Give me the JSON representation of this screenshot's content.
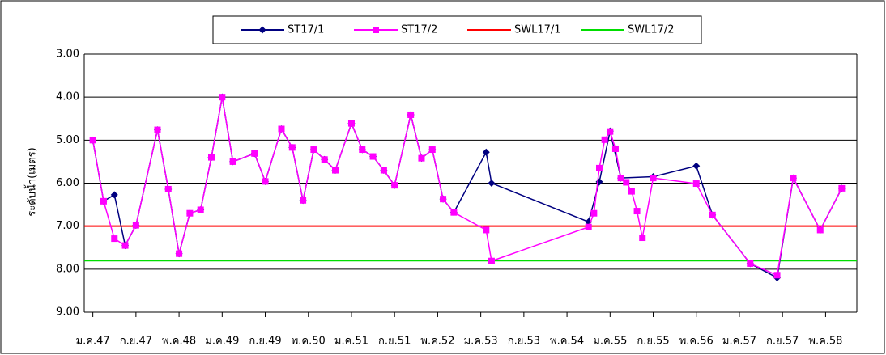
{
  "chart_data": {
    "type": "line",
    "ylabel": "ระดับน้ำ(เมตร)",
    "ylim": [
      3,
      9
    ],
    "y_inverted": true,
    "yticks": [
      {
        "value": 3,
        "label": "3.00"
      },
      {
        "value": 4,
        "label": "4.00"
      },
      {
        "value": 5,
        "label": "5.00"
      },
      {
        "value": 6,
        "label": "6.00"
      },
      {
        "value": 7,
        "label": "7.00"
      },
      {
        "value": 8,
        "label": "8.00"
      },
      {
        "value": 9,
        "label": "9.00"
      }
    ],
    "grid": true,
    "xlim": [
      -1.6,
      141.8
    ],
    "xticks": [
      {
        "value": 0,
        "label": "ม.ค.47"
      },
      {
        "value": 8,
        "label": "ก.ย.47"
      },
      {
        "value": 16,
        "label": "พ.ค.48"
      },
      {
        "value": 24,
        "label": "ม.ค.49"
      },
      {
        "value": 32,
        "label": "ก.ย.49"
      },
      {
        "value": 40,
        "label": "พ.ค.50"
      },
      {
        "value": 48,
        "label": "ม.ค.51"
      },
      {
        "value": 56,
        "label": "ก.ย.51"
      },
      {
        "value": 64,
        "label": "พ.ค.52"
      },
      {
        "value": 72,
        "label": "ม.ค.53"
      },
      {
        "value": 80,
        "label": "ก.ย.53"
      },
      {
        "value": 88,
        "label": "พ.ค.54"
      },
      {
        "value": 96,
        "label": "ม.ค.55"
      },
      {
        "value": 104,
        "label": "ก.ย.55"
      },
      {
        "value": 112,
        "label": "พ.ค.56"
      },
      {
        "value": 120,
        "label": "ม.ค.57"
      },
      {
        "value": 128,
        "label": "ก.ย.57"
      },
      {
        "value": 136,
        "label": "พ.ค.58"
      }
    ],
    "legend": "top",
    "series": [
      {
        "name": "ST17/1",
        "color": "#000080",
        "marker": "diamond",
        "x": [
          0,
          2,
          4,
          6,
          8,
          12,
          14,
          16,
          18,
          20,
          22,
          24,
          26,
          30,
          32,
          35,
          37,
          39,
          41,
          43,
          45,
          48,
          50,
          52,
          54,
          56,
          59,
          61,
          63,
          65,
          67,
          73,
          74,
          92,
          94,
          96,
          98,
          104,
          112,
          115,
          122,
          127,
          130,
          135,
          139
        ],
        "values": [
          5.0,
          6.42,
          6.27,
          7.45,
          6.98,
          4.76,
          6.14,
          7.64,
          6.7,
          6.62,
          5.4,
          4.0,
          5.5,
          5.31,
          5.96,
          4.74,
          5.17,
          6.4,
          5.22,
          5.45,
          5.7,
          4.61,
          5.22,
          5.38,
          5.7,
          6.05,
          4.41,
          5.42,
          5.22,
          6.37,
          6.68,
          5.28,
          6.0,
          6.9,
          5.97,
          4.79,
          5.88,
          5.85,
          5.6,
          6.74,
          7.87,
          8.2,
          5.88,
          7.09,
          6.12
        ]
      },
      {
        "name": "ST17/2",
        "color": "#ff00ff",
        "marker": "square",
        "x": [
          0,
          2,
          4,
          6,
          8,
          12,
          14,
          16,
          18,
          20,
          22,
          24,
          26,
          30,
          32,
          35,
          37,
          39,
          41,
          43,
          45,
          48,
          50,
          52,
          54,
          56,
          59,
          61,
          63,
          65,
          67,
          73,
          74,
          92,
          93,
          94,
          95,
          96,
          97,
          98,
          99,
          100,
          101,
          102,
          104,
          112,
          115,
          122,
          127,
          130,
          135,
          139
        ],
        "values": [
          5.0,
          6.42,
          7.29,
          7.45,
          6.98,
          4.76,
          6.14,
          7.64,
          6.7,
          6.62,
          5.4,
          4.0,
          5.5,
          5.31,
          5.96,
          4.74,
          5.17,
          6.4,
          5.22,
          5.45,
          5.7,
          4.61,
          5.22,
          5.38,
          5.7,
          6.05,
          4.41,
          5.42,
          5.22,
          6.37,
          6.68,
          7.09,
          7.81,
          7.02,
          6.7,
          5.65,
          4.99,
          4.8,
          5.2,
          5.88,
          5.98,
          6.19,
          6.65,
          7.27,
          5.88,
          6.01,
          6.74,
          7.87,
          8.14,
          5.88,
          7.09,
          6.12
        ]
      }
    ],
    "hlines": [
      {
        "name": "SWL17/1",
        "color": "#ff0000",
        "value": 7.0
      },
      {
        "name": "SWL17/2",
        "color": "#00dd00",
        "value": 7.8
      }
    ]
  }
}
